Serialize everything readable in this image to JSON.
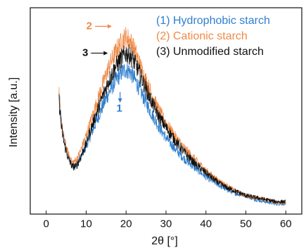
{
  "chart_data": {
    "type": "line",
    "xlabel": "2θ [°]",
    "ylabel": "Intensity [a.u.]",
    "xlim": [
      -4,
      64
    ],
    "ylim": [
      0,
      100
    ],
    "xticks": [
      0,
      10,
      20,
      30,
      40,
      50,
      60
    ],
    "yticks": [],
    "grid": false,
    "legend_position": "top-right",
    "series": [
      {
        "name": "(1) Hydrophobic starch",
        "color": "#2f7fce",
        "x": [
          3.2,
          3.8,
          4.5,
          5.5,
          6.5,
          7.5,
          8.5,
          10,
          11.5,
          13,
          14.5,
          16,
          17.5,
          19,
          20,
          21,
          22,
          23,
          24.5,
          26,
          28,
          30,
          32.5,
          35,
          37.5,
          40,
          42.5,
          45,
          47.5,
          50,
          52.5,
          55,
          57.5,
          60
        ],
        "y": [
          58,
          44,
          36,
          28,
          24,
          24,
          27,
          33,
          40,
          47,
          54,
          60,
          65,
          69,
          70,
          69,
          66,
          62,
          56,
          50,
          43,
          37,
          31,
          26,
          22,
          18,
          15,
          12,
          10,
          9,
          7,
          6,
          5,
          5
        ]
      },
      {
        "name": "(2) Cationic starch",
        "color": "#ef8a47",
        "x": [
          3.2,
          3.8,
          4.5,
          5.5,
          6.5,
          7.5,
          8.5,
          10,
          11.5,
          13,
          14.5,
          16,
          17.5,
          19,
          20,
          21,
          22,
          23,
          24.5,
          26,
          28,
          30,
          32.5,
          35,
          37.5,
          40,
          42.5,
          45,
          47.5,
          50,
          52.5,
          55,
          57.5,
          60
        ],
        "y": [
          58,
          44,
          36,
          29,
          25,
          26,
          30,
          38,
          47,
          56,
          65,
          73,
          79,
          84,
          86,
          84,
          80,
          75,
          67,
          60,
          51,
          44,
          37,
          31,
          26,
          21,
          17,
          14,
          11,
          9,
          8,
          7,
          6,
          5
        ]
      },
      {
        "name": "(3) Unmodified starch",
        "color": "#111111",
        "x": [
          3.2,
          3.8,
          4.5,
          5.5,
          6.5,
          7.5,
          8.5,
          10,
          11.5,
          13,
          14.5,
          16,
          17.5,
          19,
          20,
          21,
          22,
          23,
          24.5,
          26,
          28,
          30,
          32.5,
          35,
          37.5,
          40,
          42.5,
          45,
          47.5,
          50,
          52.5,
          55,
          57.5,
          60
        ],
        "y": [
          55,
          42,
          34,
          27,
          23,
          23,
          27,
          34,
          43,
          51,
          59,
          66,
          72,
          76,
          78,
          77,
          74,
          70,
          63,
          56,
          48,
          42,
          35,
          29,
          24,
          20,
          16,
          13,
          11,
          9,
          8,
          7,
          6,
          6
        ]
      }
    ],
    "annotations": [
      {
        "label": "1",
        "color": "#2f7fce",
        "x": 18.5,
        "y": 53
      },
      {
        "label": "2",
        "color": "#ef8a47",
        "x": 11.5,
        "y": 91
      },
      {
        "label": "3",
        "color": "#111111",
        "x": 10.5,
        "y": 78
      }
    ]
  }
}
